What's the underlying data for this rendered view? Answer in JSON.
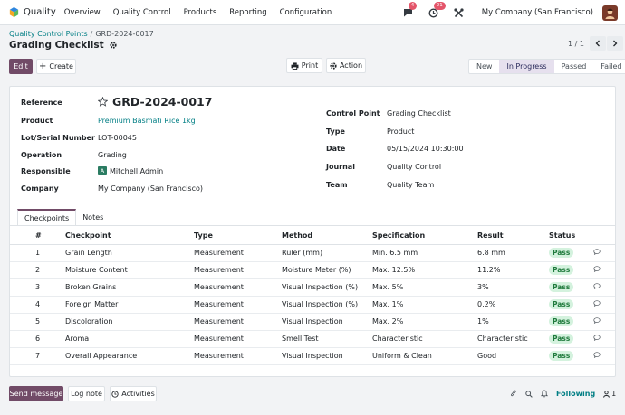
{
  "app": {
    "name": "Quality",
    "company": "My Company (San Francisco)",
    "messages_badge": "4",
    "activity_badge": "21"
  },
  "menu": [
    "Overview",
    "Quality Control",
    "Products",
    "Reporting",
    "Configuration"
  ],
  "breadcrumb": {
    "parent": "Quality Control Points",
    "current": "GRD-2024-0017"
  },
  "page": {
    "title": "Grading Checklist",
    "pager": "1 / 1"
  },
  "toolbar": {
    "edit": "Edit",
    "create": "Create",
    "print": "Print",
    "action": "Action"
  },
  "status_bar": {
    "steps": [
      "New",
      "In Progress",
      "Passed",
      "Failed"
    ],
    "active": "In Progress"
  },
  "record": {
    "reference_label": "Reference",
    "reference": "GRD-2024-0017",
    "left_fields": [
      {
        "label": "Product",
        "value": "Premium Basmati Rice 1kg"
      },
      {
        "label": "Lot/Serial Number",
        "value": "LOT-00045"
      },
      {
        "label": "Operation",
        "value": "Grading"
      },
      {
        "label": "Responsible",
        "value": "Mitchell Admin",
        "avatar": "A"
      },
      {
        "label": "Company",
        "value": "My Company (San Francisco)"
      }
    ],
    "right_fields": [
      {
        "label": "Control Point",
        "value": "Grading Checklist"
      },
      {
        "label": "Type",
        "value": "Product"
      },
      {
        "label": "Date",
        "value": "05/15/2024 10:30:00"
      },
      {
        "label": "Journal",
        "value": "Quality Control"
      },
      {
        "label": "Team",
        "value": "Quality Team"
      }
    ]
  },
  "tabs": [
    "Checkpoints",
    "Notes"
  ],
  "table": {
    "headers": [
      "#",
      "Checkpoint",
      "Type",
      "Method",
      "Specification",
      "Result",
      "Status"
    ],
    "rows": [
      [
        "1",
        "Grain Length",
        "Measurement",
        "Ruler (mm)",
        "Min. 6.5 mm",
        "6.8 mm",
        "Pass"
      ],
      [
        "2",
        "Moisture Content",
        "Measurement",
        "Moisture Meter (%)",
        "Max. 12.5%",
        "11.2%",
        "Pass"
      ],
      [
        "3",
        "Broken Grains",
        "Measurement",
        "Visual Inspection (%)",
        "Max. 5%",
        "3%",
        "Pass"
      ],
      [
        "4",
        "Foreign Matter",
        "Measurement",
        "Visual Inspection (%)",
        "Max. 1%",
        "0.2%",
        "Pass"
      ],
      [
        "5",
        "Discoloration",
        "Measurement",
        "Visual Inspection",
        "Max. 2%",
        "1%",
        "Pass"
      ],
      [
        "6",
        "Aroma",
        "Measurement",
        "Smell Test",
        "Characteristic",
        "Characteristic",
        "Pass"
      ],
      [
        "7",
        "Overall Appearance",
        "Measurement",
        "Visual Inspection",
        "Uniform & Clean",
        "Good",
        "Pass"
      ]
    ]
  },
  "chatter": {
    "send": "Send message",
    "log": "Log note",
    "activities": "Activities",
    "following": "Following",
    "followers": "1"
  },
  "colors": {
    "primary": "#714b67",
    "link": "#017e84",
    "pass_bg": "#d4f2de",
    "pass_text": "#1f7a3c"
  }
}
